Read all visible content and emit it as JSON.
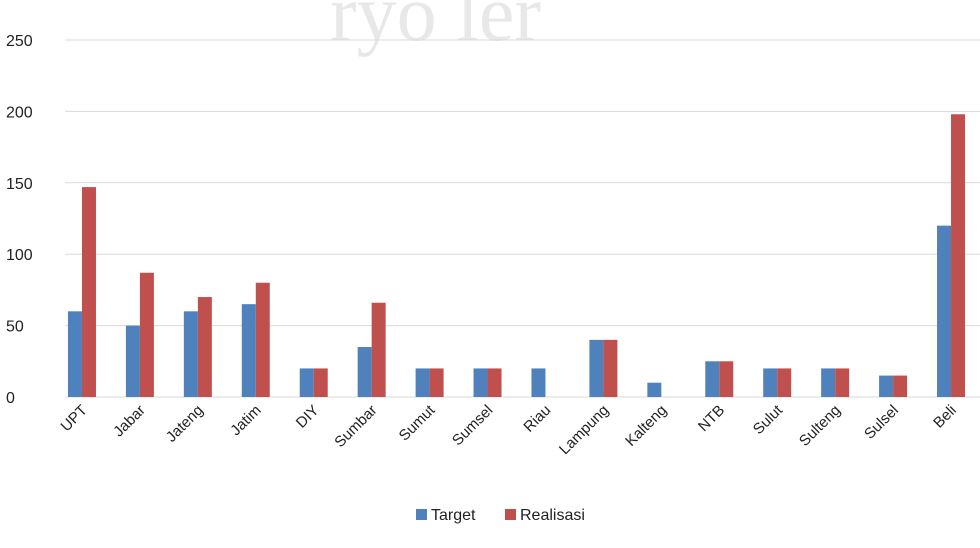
{
  "chart_data": {
    "type": "bar",
    "categories": [
      "UPT",
      "Jabar",
      "Jateng",
      "Jatim",
      "DIY",
      "Sumbar",
      "Sumut",
      "Sumsel",
      "Riau",
      "Lampung",
      "Kalteng",
      "NTB",
      "Sulut",
      "Sulteng",
      "Sulsel",
      "Beli"
    ],
    "series": [
      {
        "name": "Target",
        "color": "#4f81bd",
        "values": [
          60,
          50,
          60,
          65,
          20,
          35,
          20,
          20,
          20,
          40,
          10,
          25,
          20,
          20,
          15,
          120
        ]
      },
      {
        "name": "Realisasi",
        "color": "#c0504d",
        "values": [
          147,
          87,
          70,
          80,
          20,
          66,
          20,
          20,
          0,
          40,
          0,
          25,
          20,
          20,
          15,
          198
        ]
      }
    ],
    "ylim": [
      0,
      250
    ],
    "yticks": [
      0,
      50,
      100,
      150,
      200,
      250
    ],
    "grid": true,
    "legend_position": "bottom",
    "title": "",
    "xlabel": "",
    "ylabel": ""
  }
}
